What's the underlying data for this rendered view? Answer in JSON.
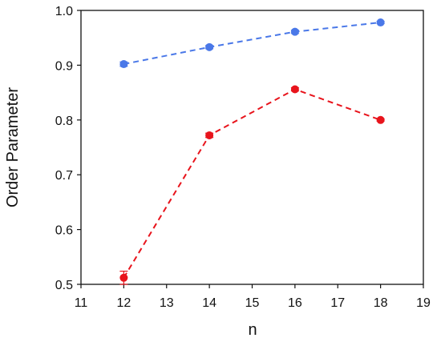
{
  "chart_data": {
    "type": "line",
    "title": "",
    "xlabel": "n",
    "ylabel": "Order Parameter",
    "xlim": [
      11,
      19
    ],
    "ylim": [
      0.5,
      1.0
    ],
    "x_ticks": [
      "11",
      "12",
      "13",
      "14",
      "15",
      "16",
      "17",
      "18",
      "19"
    ],
    "y_ticks": [
      "0.5",
      "0.6",
      "0.7",
      "0.8",
      "0.9",
      "1.0"
    ],
    "grid": false,
    "legend": "none",
    "series": [
      {
        "color": "#4a78e8",
        "line_style": "dashed",
        "marker": "circle",
        "x": [
          12,
          14,
          16,
          18
        ],
        "y": [
          0.902,
          0.933,
          0.961,
          0.978
        ],
        "error": [
          0.004,
          0.003,
          0.003,
          0.002
        ]
      },
      {
        "color": "#e8141c",
        "line_style": "dashed",
        "marker": "circle",
        "x": [
          12,
          14,
          16,
          18
        ],
        "y": [
          0.512,
          0.772,
          0.856,
          0.8
        ],
        "error": [
          0.012,
          0.004,
          0.003,
          0.002
        ]
      }
    ]
  }
}
